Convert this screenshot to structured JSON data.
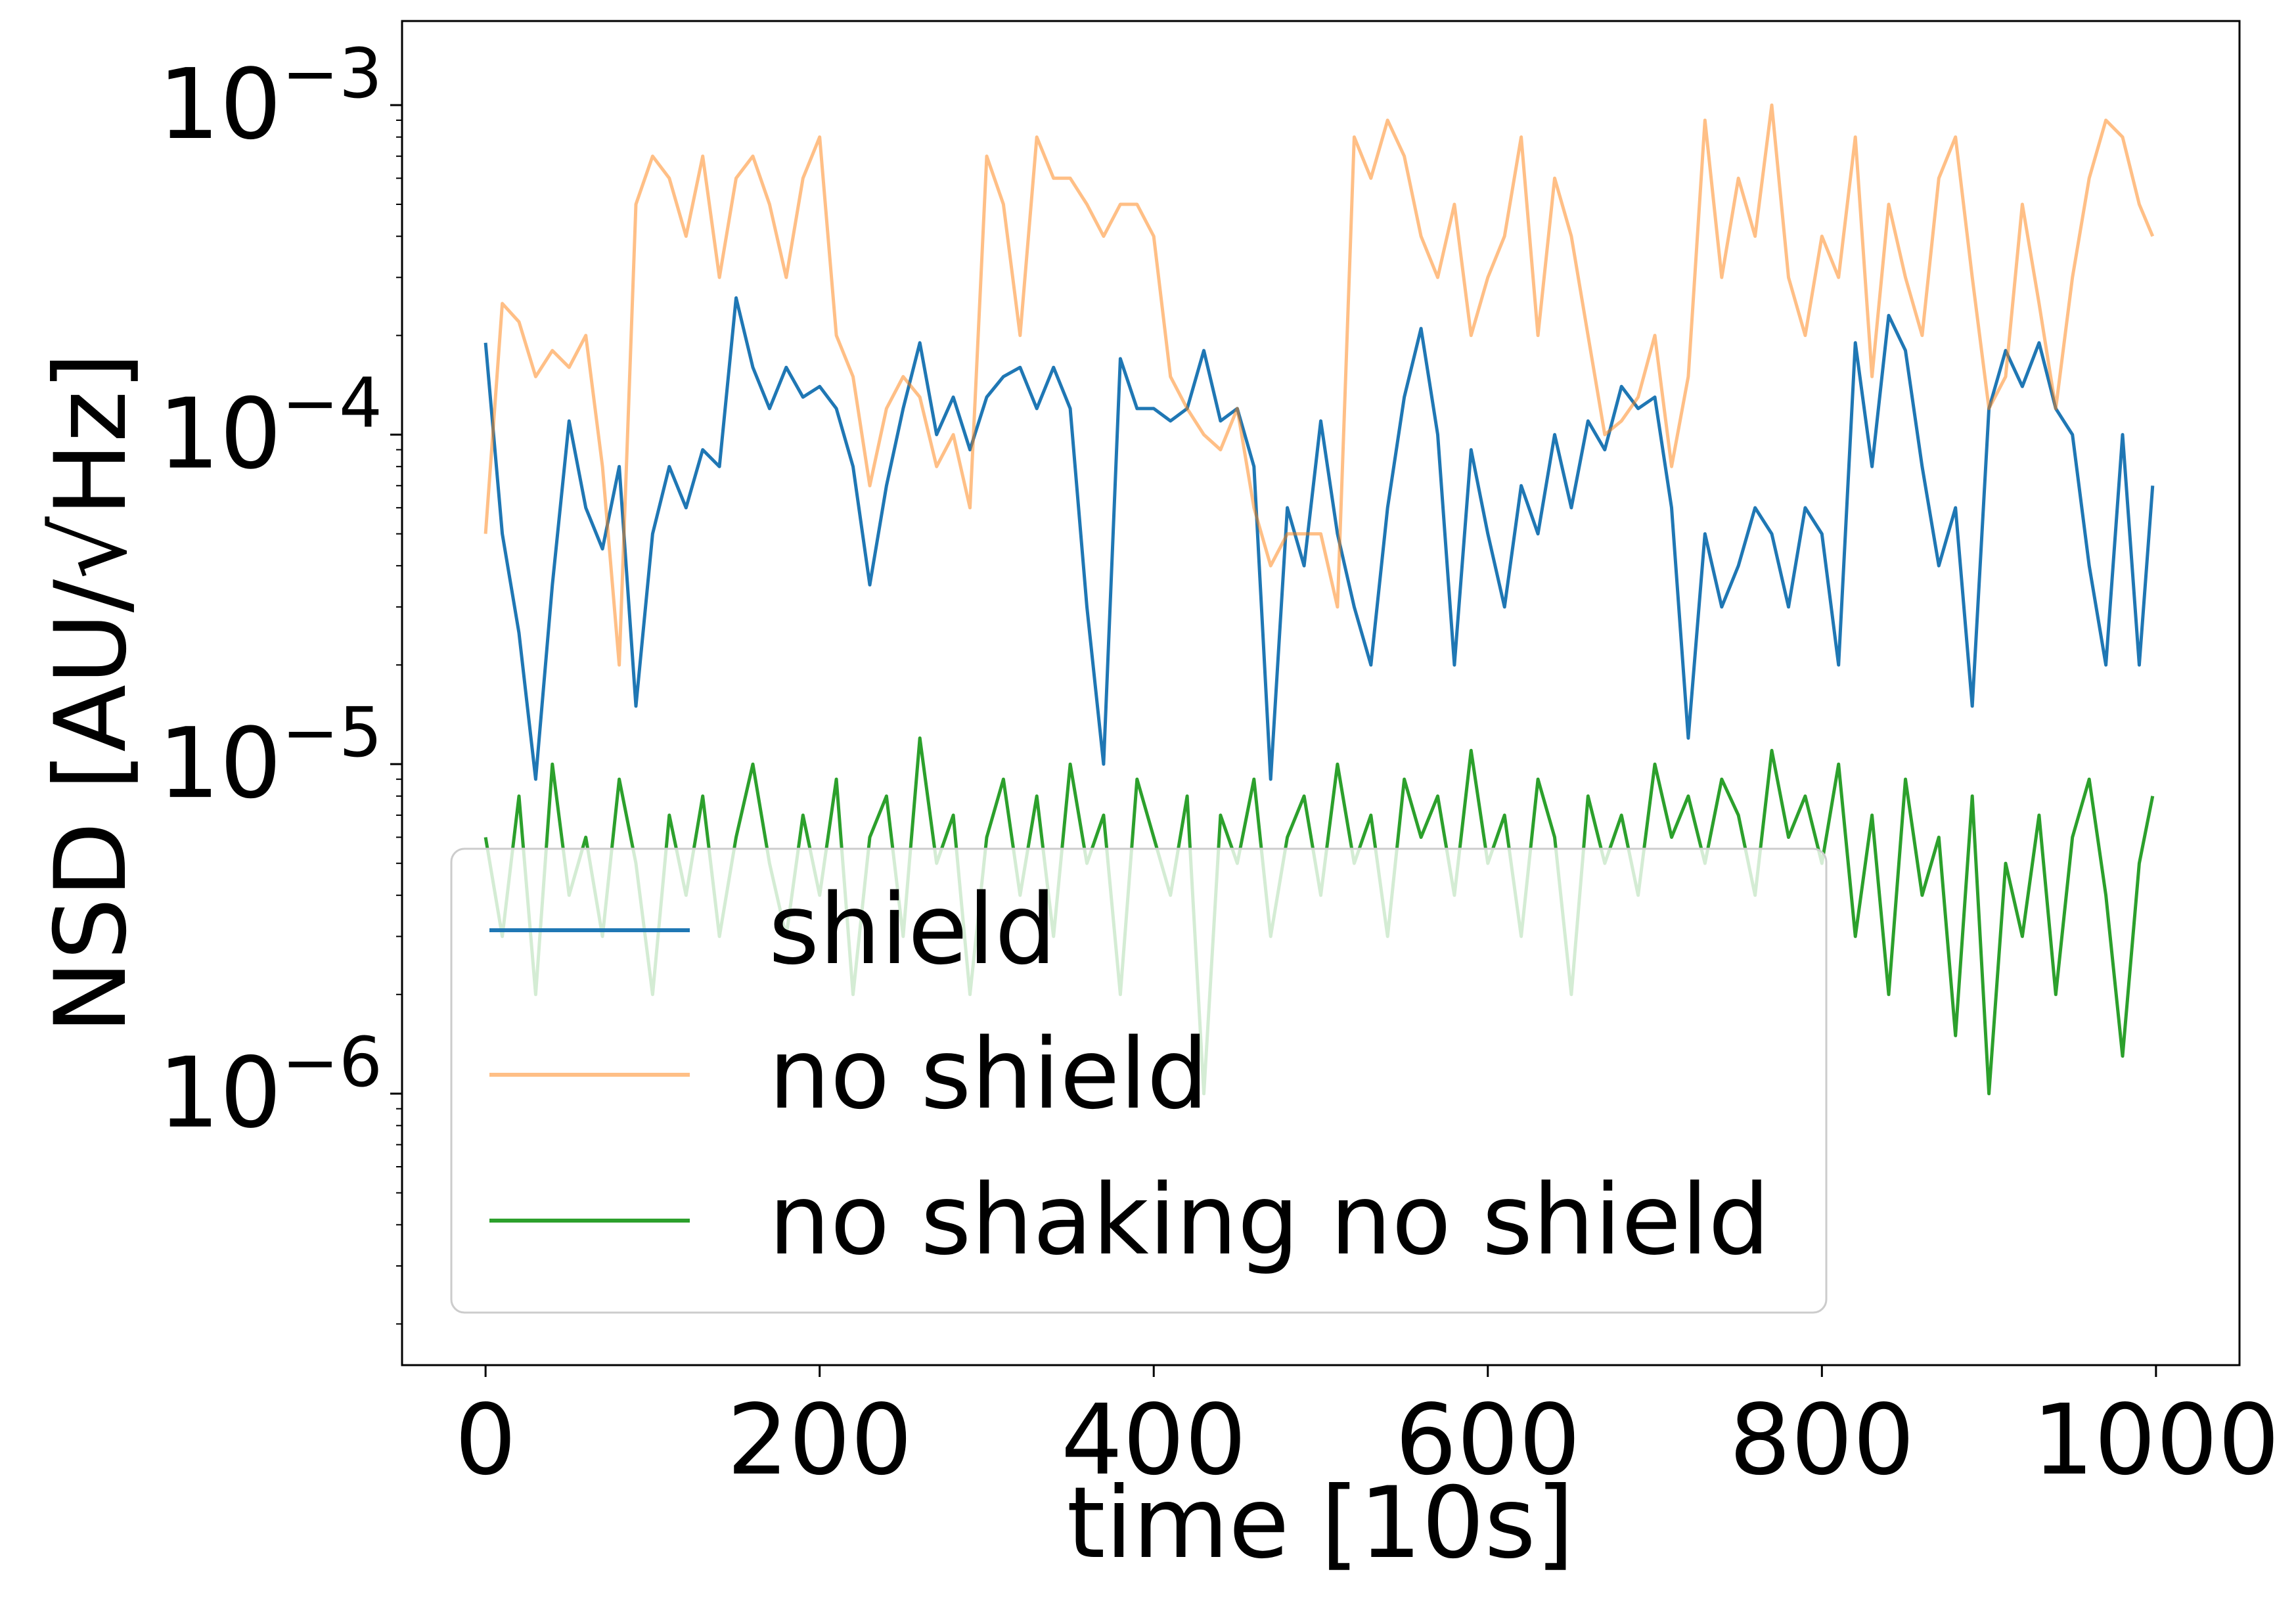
{
  "chart_data": {
    "type": "line",
    "xlabel": "time [10s]",
    "ylabel": "NSD [AU/√Hz]",
    "yscale": "log",
    "xlim": [
      -50,
      1050
    ],
    "ylim": [
      1.5e-07,
      0.0018
    ],
    "x_ticks": [
      0,
      200,
      400,
      600,
      800,
      1000
    ],
    "y_ticks": [
      {
        "value": 1e-06,
        "base": "10",
        "exp": "−6"
      },
      {
        "value": 1e-05,
        "base": "10",
        "exp": "−5"
      },
      {
        "value": 0.0001,
        "base": "10",
        "exp": "−4"
      },
      {
        "value": 0.001,
        "base": "10",
        "exp": "−3"
      }
    ],
    "grid": false,
    "legend_position": "lower-left",
    "series": [
      {
        "name": "shield",
        "color": "#1f77b4",
        "opacity": 1.0,
        "x": [
          0,
          10,
          20,
          30,
          40,
          50,
          60,
          70,
          80,
          90,
          100,
          110,
          120,
          130,
          140,
          150,
          160,
          170,
          180,
          190,
          200,
          210,
          220,
          230,
          240,
          250,
          260,
          270,
          280,
          290,
          300,
          310,
          320,
          330,
          340,
          350,
          360,
          370,
          380,
          390,
          400,
          410,
          420,
          430,
          440,
          450,
          460,
          470,
          480,
          490,
          500,
          510,
          520,
          530,
          540,
          550,
          560,
          570,
          580,
          590,
          600,
          610,
          620,
          630,
          640,
          650,
          660,
          670,
          680,
          690,
          700,
          710,
          720,
          730,
          740,
          750,
          760,
          770,
          780,
          790,
          800,
          810,
          820,
          830,
          840,
          850,
          860,
          870,
          880,
          890,
          900,
          910,
          920,
          930,
          940,
          950,
          960,
          970,
          980,
          990,
          998
        ],
        "values": [
          0.00019,
          5e-05,
          2.5e-05,
          9e-06,
          3.5e-05,
          0.00011,
          6e-05,
          4.5e-05,
          8e-05,
          1.5e-05,
          5e-05,
          8e-05,
          6e-05,
          9e-05,
          8e-05,
          0.00026,
          0.00016,
          0.00012,
          0.00016,
          0.00013,
          0.00014,
          0.00012,
          8e-05,
          3.5e-05,
          7e-05,
          0.00012,
          0.00019,
          0.0001,
          0.00013,
          9e-05,
          0.00013,
          0.00015,
          0.00016,
          0.00012,
          0.00016,
          0.00012,
          3e-05,
          1e-05,
          0.00017,
          0.00012,
          0.00012,
          0.00011,
          0.00012,
          0.00018,
          0.00011,
          0.00012,
          8e-05,
          9e-06,
          6e-05,
          4e-05,
          0.00011,
          5e-05,
          3e-05,
          2e-05,
          6e-05,
          0.00013,
          0.00021,
          0.0001,
          2e-05,
          9e-05,
          5e-05,
          3e-05,
          7e-05,
          5e-05,
          0.0001,
          6e-05,
          0.00011,
          9e-05,
          0.00014,
          0.00012,
          0.00013,
          6e-05,
          1.2e-05,
          5e-05,
          3e-05,
          4e-05,
          6e-05,
          5e-05,
          3e-05,
          6e-05,
          5e-05,
          2e-05,
          0.00019,
          8e-05,
          0.00023,
          0.00018,
          8e-05,
          4e-05,
          6e-05,
          1.5e-05,
          0.00012,
          0.00018,
          0.00014,
          0.00019,
          0.00012,
          0.0001,
          4e-05,
          2e-05,
          0.0001,
          2e-05,
          7e-05
        ]
      },
      {
        "name": "no shield",
        "color": "#ff7f0e",
        "opacity": 0.5,
        "x": [
          0,
          10,
          20,
          30,
          40,
          50,
          60,
          70,
          80,
          90,
          100,
          110,
          120,
          130,
          140,
          150,
          160,
          170,
          180,
          190,
          200,
          210,
          220,
          230,
          240,
          250,
          260,
          270,
          280,
          290,
          300,
          310,
          320,
          330,
          340,
          350,
          360,
          370,
          380,
          390,
          400,
          410,
          420,
          430,
          440,
          450,
          460,
          470,
          480,
          490,
          500,
          510,
          520,
          530,
          540,
          550,
          560,
          570,
          580,
          590,
          600,
          610,
          620,
          630,
          640,
          650,
          660,
          670,
          680,
          690,
          700,
          710,
          720,
          730,
          740,
          750,
          760,
          770,
          780,
          790,
          800,
          810,
          820,
          830,
          840,
          850,
          860,
          870,
          880,
          890,
          900,
          910,
          920,
          930,
          940,
          950,
          960,
          970,
          980,
          990,
          998
        ],
        "values": [
          5e-05,
          0.00025,
          0.00022,
          0.00015,
          0.00018,
          0.00016,
          0.0002,
          8e-05,
          2e-05,
          0.0005,
          0.0007,
          0.0006,
          0.0004,
          0.0007,
          0.0003,
          0.0006,
          0.0007,
          0.0005,
          0.0003,
          0.0006,
          0.0008,
          0.0002,
          0.00015,
          7e-05,
          0.00012,
          0.00015,
          0.00013,
          8e-05,
          0.0001,
          6e-05,
          0.0007,
          0.0005,
          0.0002,
          0.0008,
          0.0006,
          0.0006,
          0.0005,
          0.0004,
          0.0005,
          0.0005,
          0.0004,
          0.00015,
          0.00012,
          0.0001,
          9e-05,
          0.00012,
          6e-05,
          4e-05,
          5e-05,
          5e-05,
          5e-05,
          3e-05,
          0.0008,
          0.0006,
          0.0009,
          0.0007,
          0.0004,
          0.0003,
          0.0005,
          0.0002,
          0.0003,
          0.0004,
          0.0008,
          0.0002,
          0.0006,
          0.0004,
          0.0002,
          0.0001,
          0.00011,
          0.00013,
          0.0002,
          8e-05,
          0.00015,
          0.0009,
          0.0003,
          0.0006,
          0.0004,
          0.001,
          0.0003,
          0.0002,
          0.0004,
          0.0003,
          0.0008,
          0.00015,
          0.0005,
          0.0003,
          0.0002,
          0.0006,
          0.0008,
          0.0003,
          0.00012,
          0.00015,
          0.0005,
          0.00025,
          0.00012,
          0.0003,
          0.0006,
          0.0009,
          0.0008,
          0.0005,
          0.0004
        ]
      },
      {
        "name": "no shaking no shield",
        "color": "#2ca02c",
        "opacity": 1.0,
        "x": [
          0,
          10,
          20,
          30,
          40,
          50,
          60,
          70,
          80,
          90,
          100,
          110,
          120,
          130,
          140,
          150,
          160,
          170,
          180,
          190,
          200,
          210,
          220,
          230,
          240,
          250,
          260,
          270,
          280,
          290,
          300,
          310,
          320,
          330,
          340,
          350,
          360,
          370,
          380,
          390,
          400,
          410,
          420,
          430,
          440,
          450,
          460,
          470,
          480,
          490,
          500,
          510,
          520,
          530,
          540,
          550,
          560,
          570,
          580,
          590,
          600,
          610,
          620,
          630,
          640,
          650,
          660,
          670,
          680,
          690,
          700,
          710,
          720,
          730,
          740,
          750,
          760,
          770,
          780,
          790,
          800,
          810,
          820,
          830,
          840,
          850,
          860,
          870,
          880,
          890,
          900,
          910,
          920,
          930,
          940,
          950,
          960,
          970,
          980,
          990,
          998
        ],
        "values": [
          6e-06,
          3e-06,
          8e-06,
          2e-06,
          1e-05,
          4e-06,
          6e-06,
          3e-06,
          9e-06,
          5e-06,
          2e-06,
          7e-06,
          4e-06,
          8e-06,
          3e-06,
          6e-06,
          1e-05,
          5e-06,
          3e-06,
          7e-06,
          4e-06,
          9e-06,
          2e-06,
          6e-06,
          8e-06,
          3e-06,
          1.2e-05,
          5e-06,
          7e-06,
          2e-06,
          6e-06,
          9e-06,
          4e-06,
          8e-06,
          3e-06,
          1e-05,
          5e-06,
          7e-06,
          2e-06,
          9e-06,
          6e-06,
          4e-06,
          8e-06,
          1e-06,
          7e-06,
          5e-06,
          9e-06,
          3e-06,
          6e-06,
          8e-06,
          4e-06,
          1e-05,
          5e-06,
          7e-06,
          3e-06,
          9e-06,
          6e-06,
          8e-06,
          4e-06,
          1.1e-05,
          5e-06,
          7e-06,
          3e-06,
          9e-06,
          6e-06,
          2e-06,
          8e-06,
          5e-06,
          7e-06,
          4e-06,
          1e-05,
          6e-06,
          8e-06,
          5e-06,
          9e-06,
          7e-06,
          4e-06,
          1.1e-05,
          6e-06,
          8e-06,
          5e-06,
          1e-05,
          3e-06,
          7e-06,
          2e-06,
          9e-06,
          4e-06,
          6e-06,
          1.5e-06,
          8e-06,
          1e-06,
          5e-06,
          3e-06,
          7e-06,
          2e-06,
          6e-06,
          9e-06,
          4e-06,
          1.3e-06,
          5e-06,
          8e-06
        ]
      }
    ]
  }
}
